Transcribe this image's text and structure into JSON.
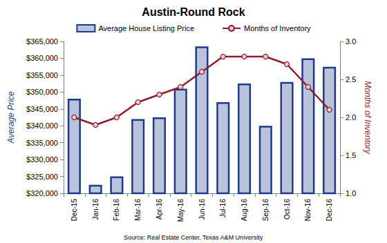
{
  "chart_data": {
    "type": "bar",
    "title": "Austin-Round Rock",
    "categories": [
      "Dec-15",
      "Jan-16",
      "Feb-16",
      "Mar-16",
      "Apr-16",
      "May-16",
      "Jun-16",
      "Jul-16",
      "Aug-16",
      "Sep-16",
      "Oct-16",
      "Nov-16",
      "Dec-16"
    ],
    "series": [
      {
        "name": "Average House Listing Price",
        "type": "bar",
        "color": "#b9c3da",
        "values": [
          348000,
          322500,
          325000,
          342000,
          342500,
          351000,
          363500,
          347000,
          352500,
          340000,
          353000,
          360000,
          357500
        ]
      },
      {
        "name": "Months of Inventory",
        "type": "line",
        "axis": "y2",
        "color": "#8b1c2c",
        "marker": "circle",
        "line_style": "solid",
        "values": [
          2.0,
          1.9,
          2.0,
          2.2,
          2.3,
          2.4,
          2.6,
          2.8,
          2.8,
          2.8,
          2.7,
          2.4,
          2.1
        ]
      }
    ],
    "ylabel": "Average Price",
    "y2label": "Months of Inventory",
    "ylim": [
      320000,
      365000
    ],
    "yticks": [
      {
        "value": 320000,
        "label": "$320,000"
      },
      {
        "value": 325000,
        "label": "$325,000"
      },
      {
        "value": 330000,
        "label": "$330,000"
      },
      {
        "value": 335000,
        "label": "$335,000"
      },
      {
        "value": 340000,
        "label": "$340,000"
      },
      {
        "value": 345000,
        "label": "$345,000"
      },
      {
        "value": 350000,
        "label": "$350,000"
      },
      {
        "value": 355000,
        "label": "$355,000"
      },
      {
        "value": 360000,
        "label": "$360,000"
      },
      {
        "value": 365000,
        "label": "$365,000"
      }
    ],
    "y2lim": [
      1.0,
      3.0
    ],
    "y2ticks": [
      {
        "value": 1.0,
        "label": "1.0"
      },
      1.5,
      {
        "value": 2.0,
        "label": "2.0"
      },
      2.5,
      {
        "value": 3.0,
        "label": "3.0"
      }
    ],
    "annotations": [
      "Source: Real Estate Center, Texas A&M University"
    ],
    "legend": "top",
    "grid": false
  }
}
